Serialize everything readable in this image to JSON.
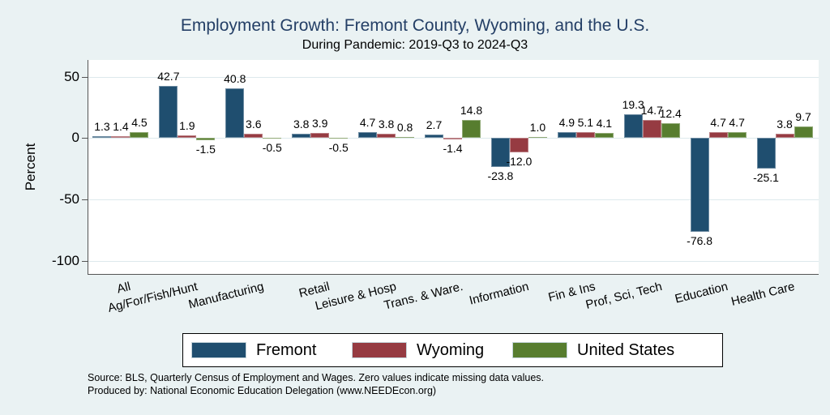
{
  "title": "Employment Growth: Fremont County, Wyoming, and the U.S.",
  "subtitle": "During Pandemic: 2019-Q3 to 2024-Q3",
  "ylabel": "Percent",
  "source_line1": "Source: BLS, Quarterly Census of Employment and Wages. Zero values indicate missing data values.",
  "source_line2": "Produced by: National Economic Education Delegation (www.NEEDEcon.org)",
  "colors": {
    "background": "#eaf2f3",
    "plot_background": "#ffffff",
    "title_text": "#243f66",
    "axis_line": "#555555",
    "gridline": "#dde9ec",
    "fremont_blue": "#1f4e6f",
    "wyoming_maroon": "#963b42",
    "us_green": "#577d2f"
  },
  "chart_data": {
    "type": "bar",
    "title": "Employment Growth: Fremont County, Wyoming, and the U.S.",
    "subtitle": "During Pandemic: 2019-Q3 to 2024-Q3",
    "xlabel": "",
    "ylabel": "Percent",
    "grid": true,
    "legend_position": "bottom",
    "yticks": [
      50,
      0,
      -50,
      -100
    ],
    "ylim": [
      -111,
      64
    ],
    "categories": [
      "All",
      "Ag/For/Fish/Hunt",
      "Manufacturing",
      "Retail",
      "Leisure & Hosp",
      "Trans. & Ware.",
      "Information",
      "Fin & Ins",
      "Prof, Sci, Tech",
      "Education",
      "Health Care"
    ],
    "series": [
      {
        "name": "Fremont",
        "color": "#1f4e6f",
        "values": [
          1.3,
          42.7,
          40.8,
          3.8,
          4.7,
          2.7,
          -23.8,
          4.9,
          19.3,
          -76.8,
          -25.1
        ]
      },
      {
        "name": "Wyoming",
        "color": "#963b42",
        "values": [
          1.4,
          1.9,
          3.6,
          3.9,
          3.8,
          -1.4,
          -12.0,
          5.1,
          14.7,
          4.7,
          3.8
        ]
      },
      {
        "name": "United States",
        "color": "#577d2f",
        "values": [
          4.5,
          -1.5,
          -0.5,
          -0.5,
          0.8,
          14.8,
          1.0,
          4.1,
          12.4,
          4.7,
          9.7
        ]
      }
    ]
  }
}
